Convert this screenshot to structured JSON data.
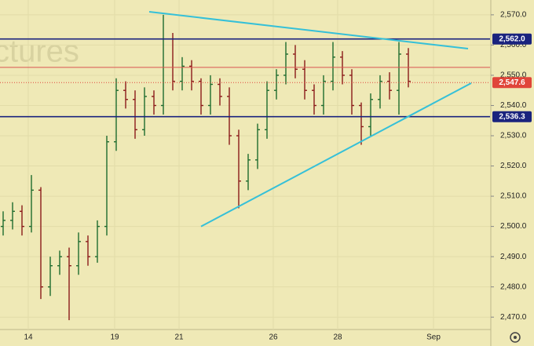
{
  "chart_data": {
    "type": "ohlc",
    "watermark": "ctures",
    "x": [
      1,
      4,
      7,
      10,
      13,
      16,
      19,
      22,
      25,
      28,
      31,
      34,
      37,
      40,
      43,
      46,
      49,
      52,
      55,
      58,
      61,
      64,
      67,
      70,
      73,
      76,
      79,
      82,
      85,
      88,
      91,
      94,
      97,
      100,
      103,
      106,
      109,
      112,
      115,
      118,
      121,
      124,
      127,
      130
    ],
    "open": [
      2500,
      2502,
      2505,
      2500,
      2512,
      2480,
      2487,
      2490,
      2487,
      2495,
      2490,
      2500,
      2528,
      2545,
      2542,
      2532,
      2543,
      2540,
      2562,
      2548,
      2553,
      2548,
      2540,
      2547,
      2543,
      2530,
      2515,
      2522,
      2532,
      2545,
      2550,
      2557,
      2552,
      2545,
      2540,
      2548,
      2556,
      2550,
      2540,
      2533,
      2542,
      2548,
      2545,
      2557
    ],
    "high": [
      2505,
      2508,
      2507,
      2517,
      2513,
      2490,
      2492,
      2493,
      2498,
      2497,
      2502,
      2530,
      2549,
      2548,
      2545,
      2546,
      2545,
      2570,
      2564,
      2556,
      2555,
      2549,
      2550,
      2549,
      2546,
      2532,
      2524,
      2534,
      2548,
      2552,
      2561,
      2560,
      2555,
      2547,
      2550,
      2561,
      2558,
      2552,
      2541,
      2544,
      2550,
      2551,
      2561,
      2559
    ],
    "low": [
      2497,
      2499,
      2497,
      2498,
      2476,
      2477,
      2484,
      2469,
      2484,
      2487,
      2488,
      2497,
      2525,
      2539,
      2529,
      2530,
      2537,
      2537,
      2545,
      2545,
      2545,
      2537,
      2537,
      2540,
      2527,
      2506,
      2512,
      2519,
      2529,
      2542,
      2547,
      2549,
      2542,
      2537,
      2537,
      2545,
      2547,
      2537,
      2527,
      2530,
      2539,
      2542,
      2537,
      2546
    ],
    "close": [
      2502,
      2505,
      2500,
      2512,
      2480,
      2487,
      2490,
      2487,
      2495,
      2490,
      2500,
      2528,
      2545,
      2542,
      2532,
      2543,
      2540,
      2562,
      2548,
      2553,
      2548,
      2540,
      2547,
      2543,
      2530,
      2515,
      2522,
      2532,
      2545,
      2550,
      2557,
      2552,
      2545,
      2540,
      2548,
      2556,
      2550,
      2540,
      2533,
      2542,
      2548,
      2545,
      2557,
      2548
    ],
    "up_color": "#1e6b2e",
    "down_color": "#8b1a1a",
    "xlim": [
      0,
      156
    ],
    "ylim": [
      2465.9,
      2574.9
    ],
    "xticks": [
      {
        "value": 9,
        "label": "14"
      },
      {
        "value": 36.5,
        "label": "19"
      },
      {
        "value": 57,
        "label": "21"
      },
      {
        "value": 87,
        "label": "26"
      },
      {
        "value": 107.5,
        "label": "28"
      },
      {
        "value": 138,
        "label": "Sep"
      }
    ],
    "yticks": [
      {
        "value": 2470,
        "label": "2,470.0"
      },
      {
        "value": 2480,
        "label": "2,480.0"
      },
      {
        "value": 2490,
        "label": "2,490.0"
      },
      {
        "value": 2500,
        "label": "2,500.0"
      },
      {
        "value": 2510,
        "label": "2,510.0"
      },
      {
        "value": 2520,
        "label": "2,520.0"
      },
      {
        "value": 2530,
        "label": "2,530.0"
      },
      {
        "value": 2540,
        "label": "2,540.0"
      },
      {
        "value": 2550,
        "label": "2,550.0"
      },
      {
        "value": 2560,
        "label": "2,560.0"
      },
      {
        "value": 2570,
        "label": "2,570.0"
      }
    ],
    "grid": true,
    "levels": [
      {
        "value": 2562.0,
        "label": "2,562.0",
        "color": "#1a237e"
      },
      {
        "value": 2536.3,
        "label": "2,536.3",
        "color": "#1a237e"
      },
      {
        "value": 2552.6,
        "color": "#d9534f"
      },
      {
        "value": 2547.6,
        "label": "2,547.6",
        "color": "#e0453a",
        "style": "dotted"
      }
    ],
    "trendlines": [
      {
        "x": [
          47.5,
          149
        ],
        "y": [
          2571,
          2558.8
        ],
        "color": "#35c0d8"
      },
      {
        "x": [
          64,
          150
        ],
        "y": [
          2500,
          2547.4
        ],
        "color": "#35c0d8"
      }
    ]
  }
}
